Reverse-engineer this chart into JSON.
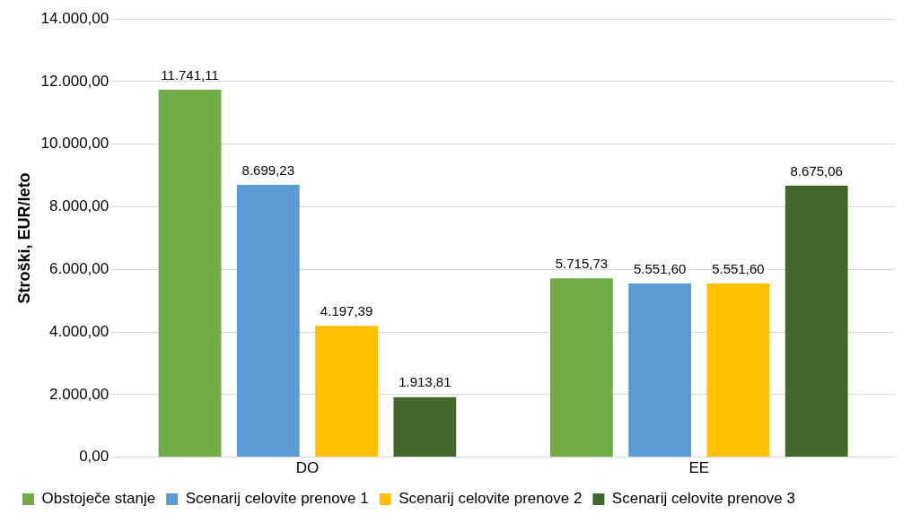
{
  "chart_data": {
    "type": "bar",
    "ylabel": "Stroški, EUR/leto",
    "categories": [
      "DO",
      "EE"
    ],
    "series": [
      {
        "name": "Obstoječe stanje",
        "color": "#70ad47",
        "values": [
          11741.11,
          5715.73
        ],
        "value_labels": [
          "11.741,11",
          "5.715,73"
        ]
      },
      {
        "name": "Scenarij celovite prenove 1",
        "color": "#5b9bd5",
        "values": [
          8699.23,
          5551.6
        ],
        "value_labels": [
          "8.699,23",
          "5.551,60"
        ]
      },
      {
        "name": "Scenarij celovite prenove 2",
        "color": "#ffc000",
        "values": [
          4197.39,
          5551.6
        ],
        "value_labels": [
          "4.197,39",
          "5.551,60"
        ]
      },
      {
        "name": "Scenarij celovite prenove 3",
        "color": "#43682b",
        "values": [
          1913.81,
          8675.06
        ],
        "value_labels": [
          "1.913,81",
          "8.675,06"
        ]
      }
    ],
    "ylim": [
      0,
      14000
    ],
    "yticks": [
      {
        "value": 0,
        "label": "0,00"
      },
      {
        "value": 2000,
        "label": "2.000,00"
      },
      {
        "value": 4000,
        "label": "4.000,00"
      },
      {
        "value": 6000,
        "label": "6.000,00"
      },
      {
        "value": 8000,
        "label": "8.000,00"
      },
      {
        "value": 10000,
        "label": "10.000,00"
      },
      {
        "value": 12000,
        "label": "12.000,00"
      },
      {
        "value": 14000,
        "label": "14.000,00"
      }
    ],
    "grid": "y",
    "legend": "bottom"
  }
}
